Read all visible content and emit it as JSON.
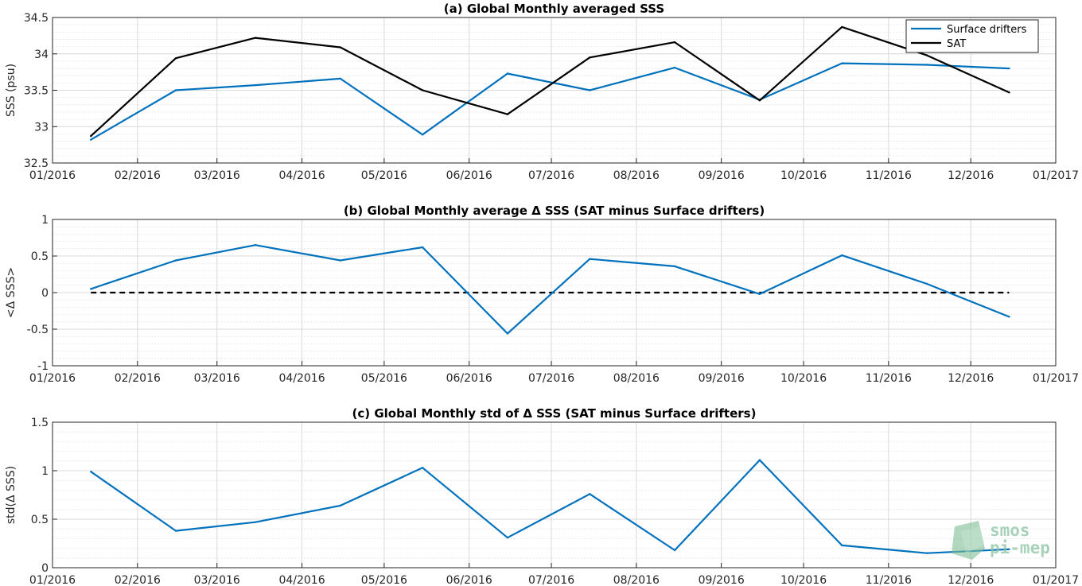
{
  "chart_data": [
    {
      "id": "a",
      "type": "line",
      "title": "(a) Global Monthly averaged SSS",
      "xlabel": "",
      "ylabel": "SSS (psu)",
      "x_ticks": [
        "01/2016",
        "02/2016",
        "03/2016",
        "04/2016",
        "05/2016",
        "06/2016",
        "07/2016",
        "08/2016",
        "09/2016",
        "10/2016",
        "11/2016",
        "12/2016",
        "01/2017"
      ],
      "y_ticks": [
        "32.5",
        "33",
        "33.5",
        "34",
        "34.5"
      ],
      "ylim": [
        32.5,
        34.5
      ],
      "grid": true,
      "legend": "top-right",
      "x": [
        "2016-01-15",
        "2016-02-15",
        "2016-03-15",
        "2016-04-15",
        "2016-05-15",
        "2016-06-15",
        "2016-07-15",
        "2016-08-15",
        "2016-09-15",
        "2016-10-15",
        "2016-11-15",
        "2016-12-15"
      ],
      "series": [
        {
          "name": "Surface drifters",
          "color": "#0072bd",
          "values": [
            32.82,
            33.5,
            33.57,
            33.66,
            32.89,
            33.73,
            33.5,
            33.81,
            33.37,
            33.87,
            33.85,
            33.8
          ]
        },
        {
          "name": "SAT",
          "color": "#000000",
          "values": [
            32.87,
            33.94,
            34.22,
            34.09,
            33.5,
            33.17,
            33.95,
            34.16,
            33.36,
            34.37,
            33.98,
            33.47
          ]
        }
      ]
    },
    {
      "id": "b",
      "type": "line",
      "title": "(b) Global Monthly average Δ SSS (SAT minus Surface drifters)",
      "xlabel": "",
      "ylabel": "<Δ SSS>",
      "x_ticks": [
        "01/2016",
        "02/2016",
        "03/2016",
        "04/2016",
        "05/2016",
        "06/2016",
        "07/2016",
        "08/2016",
        "09/2016",
        "10/2016",
        "11/2016",
        "12/2016",
        "01/2017"
      ],
      "y_ticks": [
        "-1",
        "-0.5",
        "0",
        "0.5",
        "1"
      ],
      "ylim": [
        -1,
        1
      ],
      "grid": true,
      "reference_line": 0,
      "x": [
        "2016-01-15",
        "2016-02-15",
        "2016-03-15",
        "2016-04-15",
        "2016-05-15",
        "2016-06-15",
        "2016-07-15",
        "2016-08-15",
        "2016-09-15",
        "2016-10-15",
        "2016-11-15",
        "2016-12-15"
      ],
      "series": [
        {
          "color": "#0072bd",
          "values": [
            0.05,
            0.44,
            0.65,
            0.44,
            0.62,
            -0.56,
            0.46,
            0.36,
            -0.02,
            0.51,
            0.12,
            -0.33
          ]
        }
      ]
    },
    {
      "id": "c",
      "type": "line",
      "title": "(c) Global Monthly std of Δ SSS (SAT minus Surface drifters)",
      "xlabel": "",
      "ylabel": "std(Δ SSS)",
      "x_ticks": [
        "01/2016",
        "02/2016",
        "03/2016",
        "04/2016",
        "05/2016",
        "06/2016",
        "07/2016",
        "08/2016",
        "09/2016",
        "10/2016",
        "11/2016",
        "12/2016",
        "01/2017"
      ],
      "y_ticks": [
        "0",
        "0.5",
        "1",
        "1.5"
      ],
      "ylim": [
        0,
        1.5
      ],
      "grid": true,
      "x": [
        "2016-01-15",
        "2016-02-15",
        "2016-03-15",
        "2016-04-15",
        "2016-05-15",
        "2016-06-15",
        "2016-07-15",
        "2016-08-15",
        "2016-09-15",
        "2016-10-15",
        "2016-11-15",
        "2016-12-15"
      ],
      "series": [
        {
          "color": "#0072bd",
          "values": [
            0.99,
            0.38,
            0.47,
            0.64,
            1.03,
            0.31,
            0.76,
            0.18,
            1.11,
            0.23,
            0.15,
            0.19
          ]
        }
      ]
    }
  ],
  "watermark": {
    "line1": "smos",
    "line2": "pi-mep",
    "color": "#8cc4a3"
  }
}
